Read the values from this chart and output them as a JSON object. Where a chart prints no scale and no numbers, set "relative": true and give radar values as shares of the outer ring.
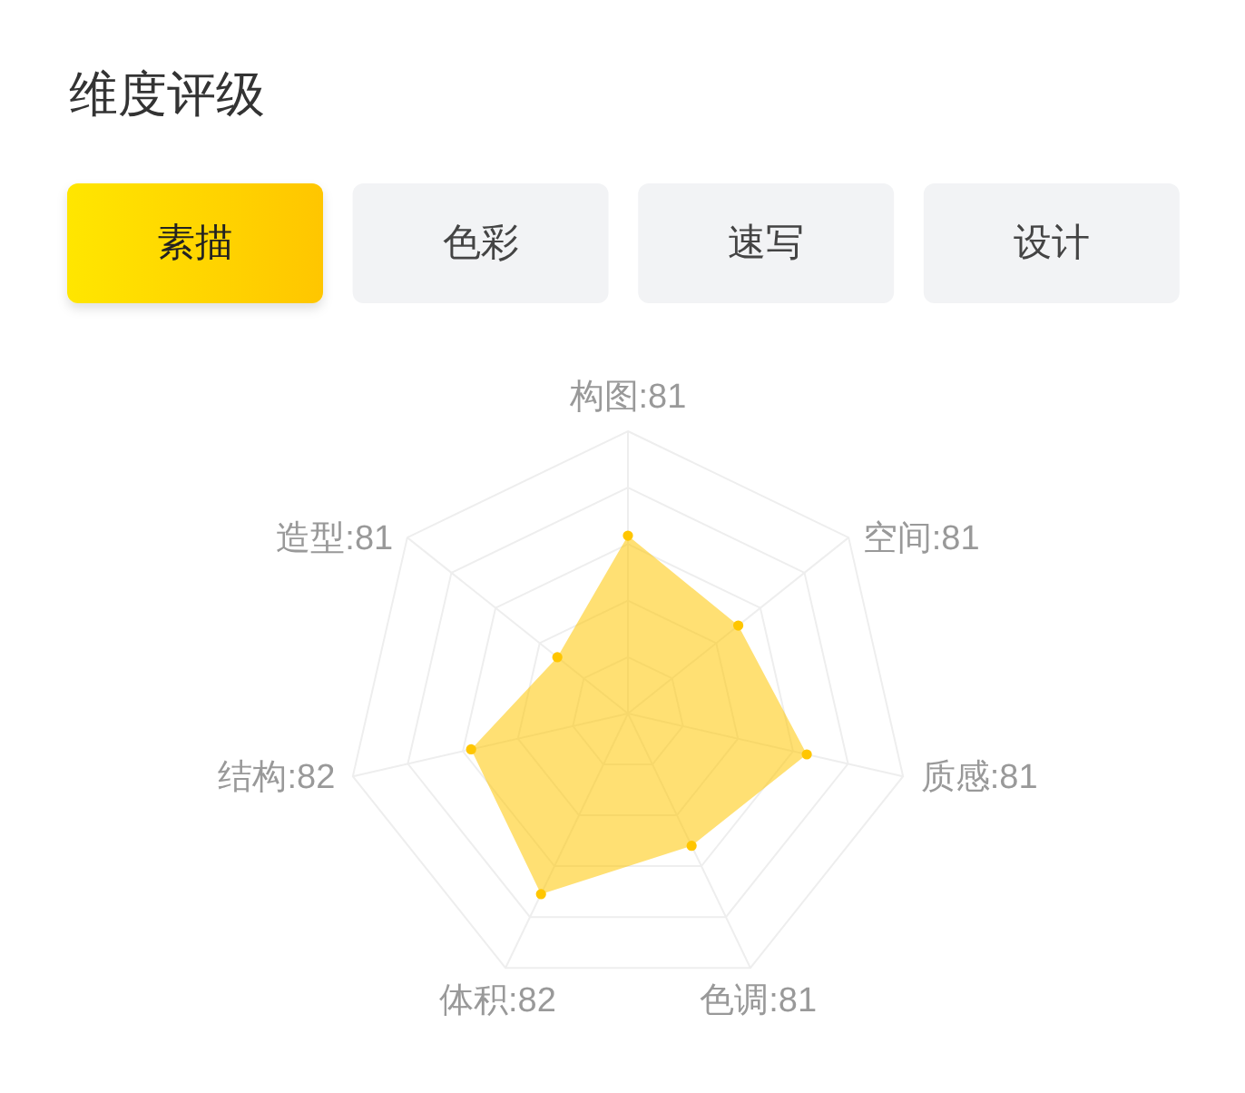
{
  "chart_data": {
    "type": "radar",
    "title": "维度评级",
    "categories": [
      "构图:81",
      "空间:81",
      "质感:81",
      "色调:81",
      "体积:82",
      "结构:82",
      "造型:81"
    ],
    "relative": true,
    "series": [
      {
        "name": "素描",
        "color": "#ffc600",
        "values": [
          0.63,
          0.5,
          0.65,
          0.52,
          0.71,
          0.57,
          0.32
        ]
      }
    ],
    "annotations": [
      "色彩",
      "速写",
      "设计"
    ],
    "legend": "top",
    "grid": true,
    "marker": "circle"
  }
}
